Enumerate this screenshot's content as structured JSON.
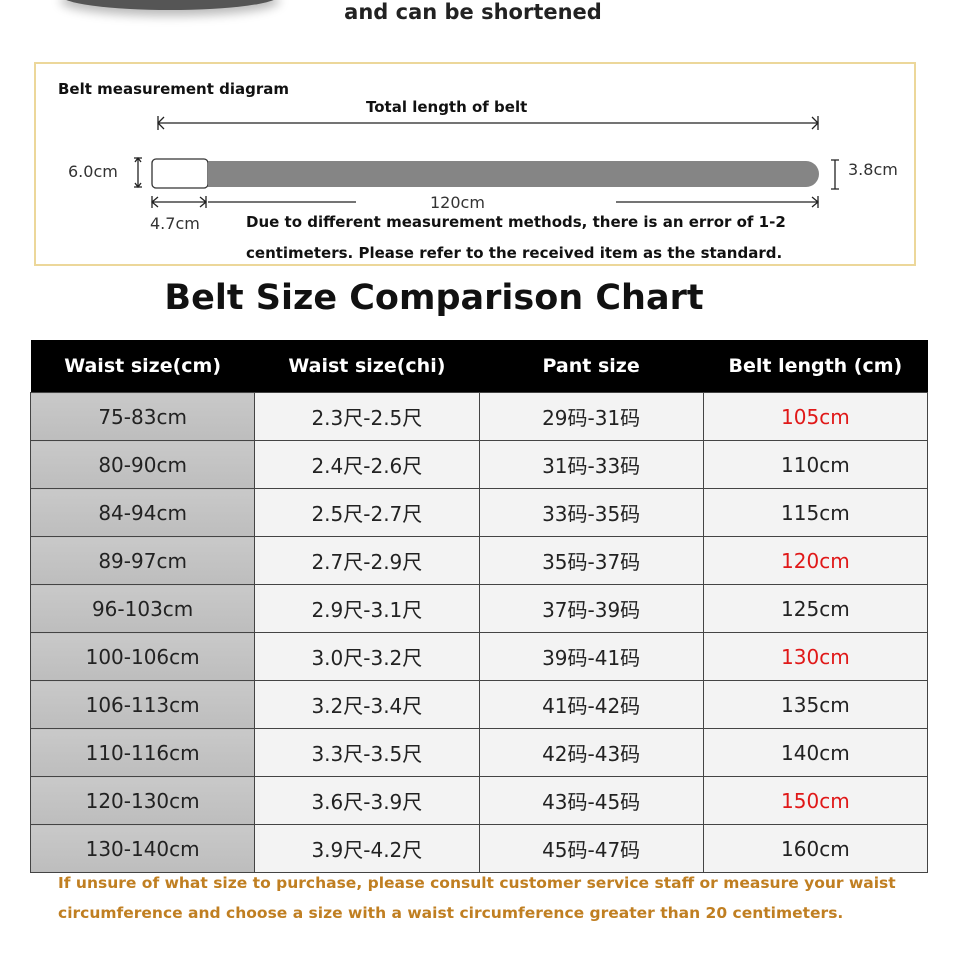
{
  "header_text": "and can be shortened",
  "diagram": {
    "title": "Belt measurement diagram",
    "total_label": "Total length of belt",
    "height_left": "6.0cm",
    "height_right": "3.8cm",
    "buckle_width": "4.7cm",
    "length": "120cm",
    "note_line1": "Due to different measurement methods, there is an error of 1-2",
    "note_line2": "centimeters. Please refer to the received item as the standard."
  },
  "chart_title": "Belt Size Comparison Chart",
  "table": {
    "headers": [
      "Waist size(cm)",
      "Waist size(chi)",
      "Pant size",
      "Belt length (cm)"
    ],
    "rows": [
      [
        "75-83cm",
        "2.3尺-2.5尺",
        "29码-31码",
        "105cm"
      ],
      [
        "80-90cm",
        "2.4尺-2.6尺",
        "31码-33码",
        "110cm"
      ],
      [
        "84-94cm",
        "2.5尺-2.7尺",
        "33码-35码",
        "115cm"
      ],
      [
        "89-97cm",
        "2.7尺-2.9尺",
        "35码-37码",
        "120cm"
      ],
      [
        "96-103cm",
        "2.9尺-3.1尺",
        "37码-39码",
        "125cm"
      ],
      [
        "100-106cm",
        "3.0尺-3.2尺",
        "39码-41码",
        "130cm"
      ],
      [
        "106-113cm",
        "3.2尺-3.4尺",
        "41码-42码",
        "135cm"
      ],
      [
        "110-116cm",
        "3.3尺-3.5尺",
        "42码-43码",
        "140cm"
      ],
      [
        "120-130cm",
        "3.6尺-3.9尺",
        "43码-45码",
        "150cm"
      ],
      [
        "130-140cm",
        "3.9尺-4.2尺",
        "45码-47码",
        "160cm"
      ]
    ],
    "highlight_rows": [
      0,
      3,
      5,
      8
    ],
    "highlight_color": "#e01818"
  },
  "footer_note": "If unsure of what size to purchase, please consult customer service staff or measure your waist circumference and choose a size with a waist circumference greater than 20 centimeters."
}
